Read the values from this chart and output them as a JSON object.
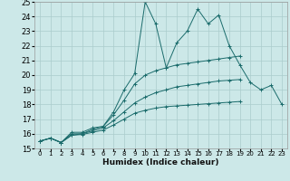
{
  "xlabel": "Humidex (Indice chaleur)",
  "ylabel": "",
  "background_color": "#cce8e8",
  "grid_color": "#aacccc",
  "line_color": "#1a6b6b",
  "xlim": [
    -0.5,
    23.5
  ],
  "ylim": [
    15,
    25
  ],
  "xticks": [
    0,
    1,
    2,
    3,
    4,
    5,
    6,
    7,
    8,
    9,
    10,
    11,
    12,
    13,
    14,
    15,
    16,
    17,
    18,
    19,
    20,
    21,
    22,
    23
  ],
  "yticks": [
    15,
    16,
    17,
    18,
    19,
    20,
    21,
    22,
    23,
    24,
    25
  ],
  "series": [
    [
      15.5,
      15.7,
      15.4,
      16.1,
      16.1,
      16.4,
      16.5,
      17.5,
      19.0,
      20.1,
      25.0,
      23.5,
      20.5,
      22.2,
      23.0,
      24.5,
      23.5,
      24.1,
      22.0,
      20.7,
      19.5,
      19.0,
      19.3,
      18.0
    ],
    [
      15.5,
      15.7,
      15.4,
      16.0,
      16.0,
      16.3,
      16.5,
      17.3,
      18.3,
      19.4,
      20.0,
      20.3,
      20.5,
      20.7,
      20.8,
      20.9,
      21.0,
      21.1,
      21.2,
      21.3,
      null,
      null,
      null,
      null
    ],
    [
      15.5,
      15.7,
      15.4,
      15.9,
      16.0,
      16.2,
      16.4,
      16.9,
      17.5,
      18.1,
      18.5,
      18.8,
      19.0,
      19.2,
      19.3,
      19.4,
      19.5,
      19.6,
      19.65,
      19.7,
      null,
      null,
      null,
      null
    ],
    [
      15.5,
      15.7,
      15.4,
      15.9,
      15.95,
      16.1,
      16.25,
      16.6,
      17.0,
      17.4,
      17.6,
      17.75,
      17.85,
      17.9,
      17.95,
      18.0,
      18.05,
      18.1,
      18.15,
      18.2,
      null,
      null,
      null,
      null
    ]
  ]
}
